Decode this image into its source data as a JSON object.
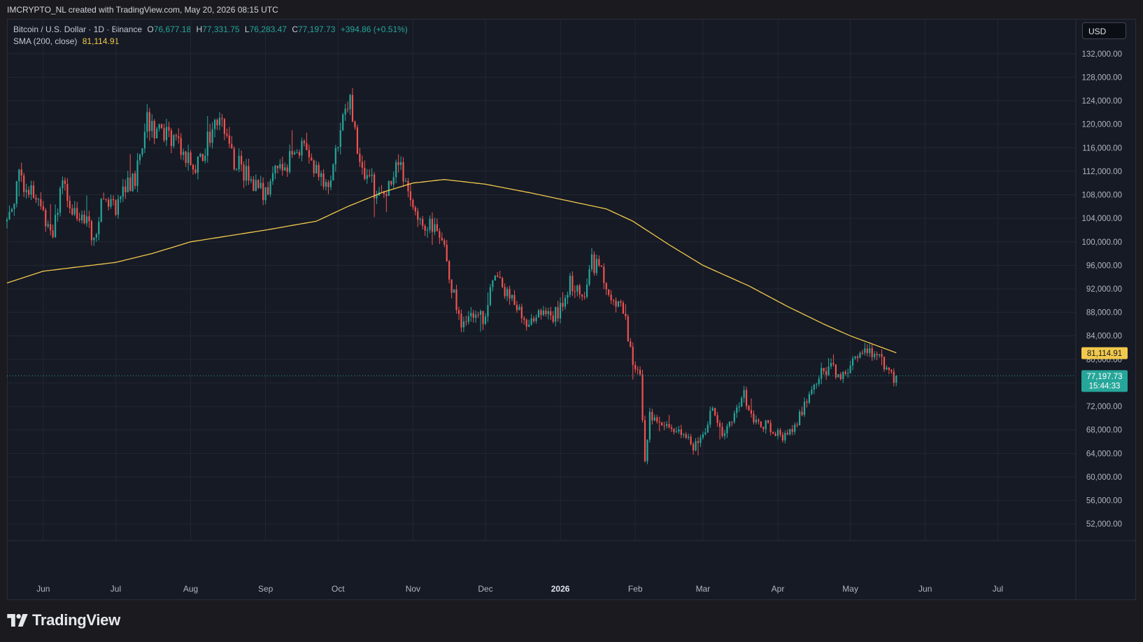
{
  "watermark": "IMCRYPTO_NL created with TradingView.com, May 20, 2026 08:15 UTC",
  "legend": {
    "symbol": "Bitcoin / U.S. Dollar · 1D · Binance",
    "open_key": "O",
    "open": "76,677.18",
    "high_key": "H",
    "high": "77,331.75",
    "low_key": "L",
    "low": "76,283.47",
    "close_key": "C",
    "close": "77,197.73",
    "change": "+394.86 (+0.51%)",
    "sma_label": "SMA (200, close)",
    "sma_value": "81,114.91"
  },
  "currency": "USD",
  "brand": "TradingView",
  "colors": {
    "up": "#26a69a",
    "down": "#ef5350",
    "sma": "#f2c94c",
    "grid": "#232733",
    "text": "#b2b5be",
    "background": "#161a25"
  },
  "chart_data": {
    "type": "candlestick",
    "ylim": [
      50000,
      134000
    ],
    "y_ticks": [
      52000,
      56000,
      60000,
      64000,
      68000,
      72000,
      76000,
      80000,
      84000,
      88000,
      92000,
      96000,
      100000,
      104000,
      108000,
      112000,
      116000,
      120000,
      124000,
      128000,
      132000
    ],
    "y_tick_labels": [
      "52,000.00",
      "56,000.00",
      "60,000.00",
      "64,000.00",
      "68,000.00",
      "72,000.00",
      "76,000.00",
      "80,000.00",
      "84,000.00",
      "88,000.00",
      "92,000.00",
      "96,000.00",
      "100,000.00",
      "104,000.00",
      "108,000.00",
      "112,000.00",
      "116,000.00",
      "120,000.00",
      "124,000.00",
      "128,000.00",
      "132,000.00"
    ],
    "x_range": [
      "2025-05-17",
      "2026-07-31"
    ],
    "x_ticks": [
      {
        "date": "2025-06-01",
        "label": "Jun"
      },
      {
        "date": "2025-07-01",
        "label": "Jul"
      },
      {
        "date": "2025-08-01",
        "label": "Aug"
      },
      {
        "date": "2025-09-01",
        "label": "Sep"
      },
      {
        "date": "2025-10-01",
        "label": "Oct"
      },
      {
        "date": "2025-11-01",
        "label": "Nov"
      },
      {
        "date": "2025-12-01",
        "label": "Dec"
      },
      {
        "date": "2026-01-01",
        "label": "2026",
        "bold": true
      },
      {
        "date": "2026-02-01",
        "label": "Feb"
      },
      {
        "date": "2026-03-01",
        "label": "Mar"
      },
      {
        "date": "2026-04-01",
        "label": "Apr"
      },
      {
        "date": "2026-05-01",
        "label": "May"
      },
      {
        "date": "2026-06-01",
        "label": "Jun"
      },
      {
        "date": "2026-07-01",
        "label": "Jul"
      }
    ],
    "price_path": [
      [
        "2025-05-17",
        103500
      ],
      [
        "2025-05-22",
        111000
      ],
      [
        "2025-05-27",
        108500
      ],
      [
        "2025-06-01",
        105000
      ],
      [
        "2025-06-05",
        101800
      ],
      [
        "2025-06-09",
        109500
      ],
      [
        "2025-06-13",
        105500
      ],
      [
        "2025-06-18",
        104500
      ],
      [
        "2025-06-22",
        100500
      ],
      [
        "2025-06-26",
        107500
      ],
      [
        "2025-07-01",
        106000
      ],
      [
        "2025-07-04",
        108500
      ],
      [
        "2025-07-09",
        111000
      ],
      [
        "2025-07-14",
        120500
      ],
      [
        "2025-07-20",
        118000
      ],
      [
        "2025-07-26",
        117500
      ],
      [
        "2025-08-02",
        112500
      ],
      [
        "2025-08-08",
        117000
      ],
      [
        "2025-08-13",
        121500
      ],
      [
        "2025-08-19",
        114000
      ],
      [
        "2025-08-25",
        111000
      ],
      [
        "2025-08-31",
        108500
      ],
      [
        "2025-09-05",
        111500
      ],
      [
        "2025-09-10",
        113500
      ],
      [
        "2025-09-16",
        116500
      ],
      [
        "2025-09-22",
        112500
      ],
      [
        "2025-09-27",
        109000
      ],
      [
        "2025-10-02",
        118500
      ],
      [
        "2025-10-06",
        124500
      ],
      [
        "2025-10-10",
        113000
      ],
      [
        "2025-10-14",
        111500
      ],
      [
        "2025-10-17",
        107000
      ],
      [
        "2025-10-21",
        108500
      ],
      [
        "2025-10-26",
        114500
      ],
      [
        "2025-10-30",
        108000
      ],
      [
        "2025-11-04",
        103000
      ],
      [
        "2025-11-08",
        102500
      ],
      [
        "2025-11-12",
        101800
      ],
      [
        "2025-11-16",
        94500
      ],
      [
        "2025-11-21",
        85500
      ],
      [
        "2025-11-25",
        87800
      ],
      [
        "2025-12-01",
        86500
      ],
      [
        "2025-12-03",
        93500
      ],
      [
        "2025-12-09",
        92000
      ],
      [
        "2025-12-14",
        88500
      ],
      [
        "2025-12-18",
        86500
      ],
      [
        "2025-12-24",
        87500
      ],
      [
        "2025-12-31",
        87800
      ],
      [
        "2026-01-05",
        93500
      ],
      [
        "2026-01-10",
        90500
      ],
      [
        "2026-01-14",
        96500
      ],
      [
        "2026-01-18",
        95000
      ],
      [
        "2026-01-22",
        89500
      ],
      [
        "2026-01-27",
        89000
      ],
      [
        "2026-01-31",
        78500
      ],
      [
        "2026-02-03",
        76500
      ],
      [
        "2026-02-05",
        63500
      ],
      [
        "2026-02-07",
        70500
      ],
      [
        "2026-02-12",
        68000
      ],
      [
        "2026-02-17",
        68500
      ],
      [
        "2026-02-22",
        67500
      ],
      [
        "2026-02-25",
        64500
      ],
      [
        "2026-03-01",
        67000
      ],
      [
        "2026-03-05",
        71500
      ],
      [
        "2026-03-09",
        67000
      ],
      [
        "2026-03-14",
        71000
      ],
      [
        "2026-03-18",
        74000
      ],
      [
        "2026-03-22",
        69000
      ],
      [
        "2026-03-27",
        69000
      ],
      [
        "2026-04-01",
        67500
      ],
      [
        "2026-04-05",
        66800
      ],
      [
        "2026-04-09",
        69500
      ],
      [
        "2026-04-14",
        73800
      ],
      [
        "2026-04-18",
        77500
      ],
      [
        "2026-04-23",
        78500
      ],
      [
        "2026-04-27",
        76500
      ],
      [
        "2026-05-01",
        78500
      ],
      [
        "2026-05-06",
        81500
      ],
      [
        "2026-05-09",
        80800
      ],
      [
        "2026-05-13",
        80500
      ],
      [
        "2026-05-16",
        78000
      ],
      [
        "2026-05-19",
        76800
      ],
      [
        "2026-05-20",
        77197.73
      ]
    ],
    "sma_path": [
      [
        "2025-05-17",
        93000
      ],
      [
        "2025-06-01",
        95000
      ],
      [
        "2025-07-01",
        96500
      ],
      [
        "2025-07-16",
        98000
      ],
      [
        "2025-08-01",
        100000
      ],
      [
        "2025-09-01",
        102000
      ],
      [
        "2025-09-22",
        103500
      ],
      [
        "2025-10-05",
        106000
      ],
      [
        "2025-10-20",
        108500
      ],
      [
        "2025-11-01",
        110000
      ],
      [
        "2025-11-14",
        110600
      ],
      [
        "2025-12-01",
        109800
      ],
      [
        "2025-12-20",
        108300
      ],
      [
        "2026-01-05",
        106900
      ],
      [
        "2026-01-20",
        105600
      ],
      [
        "2026-01-31",
        103500
      ],
      [
        "2026-02-15",
        99500
      ],
      [
        "2026-03-01",
        96000
      ],
      [
        "2026-03-20",
        92500
      ],
      [
        "2026-04-05",
        89000
      ],
      [
        "2026-04-20",
        86000
      ],
      [
        "2026-05-01",
        84000
      ],
      [
        "2026-05-20",
        81114.91
      ]
    ],
    "last_price": 77197.73,
    "last_price_label": "77,197.73",
    "countdown": "15:44:33",
    "sma_last": 81114.91,
    "sma_last_label": "81,114.91",
    "title": "",
    "xlabel": "",
    "ylabel": ""
  }
}
